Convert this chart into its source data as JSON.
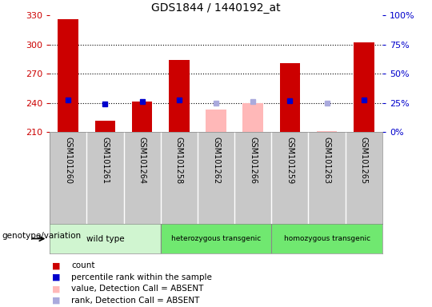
{
  "title": "GDS1844 / 1440192_at",
  "samples": [
    "GSM101260",
    "GSM101261",
    "GSM101264",
    "GSM101258",
    "GSM101262",
    "GSM101266",
    "GSM101259",
    "GSM101263",
    "GSM101265"
  ],
  "count_values": [
    326,
    222,
    241,
    284,
    null,
    null,
    281,
    null,
    302
  ],
  "count_absent_values": [
    null,
    null,
    null,
    null,
    233,
    240,
    null,
    211,
    null
  ],
  "percentile_values": [
    243,
    239,
    241,
    243,
    null,
    null,
    242,
    null,
    243
  ],
  "percentile_absent_values": [
    null,
    null,
    null,
    null,
    240,
    241,
    null,
    240,
    null
  ],
  "ylim_left": [
    210,
    330
  ],
  "ylim_right": [
    0,
    100
  ],
  "yticks_left": [
    210,
    240,
    270,
    300,
    330
  ],
  "yticks_right": [
    0,
    25,
    50,
    75,
    100
  ],
  "groups": [
    {
      "label": "wild type",
      "start": 0,
      "end": 3,
      "color": "#d0f5d0"
    },
    {
      "label": "heterozygous transgenic",
      "start": 3,
      "end": 6,
      "color": "#70e870"
    },
    {
      "label": "homozygous transgenic",
      "start": 6,
      "end": 9,
      "color": "#70e870"
    }
  ],
  "group_label": "genotype/variation",
  "bar_width": 0.55,
  "count_color": "#cc0000",
  "count_absent_color": "#ffb8b8",
  "percentile_color": "#0000cc",
  "percentile_absent_color": "#aaaadd",
  "tick_bg_color": "#c8c8c8",
  "grid_color": "#000000",
  "axis_left_color": "#cc0000",
  "axis_right_color": "#0000cc",
  "legend_items": [
    {
      "color": "#cc0000",
      "label": "count"
    },
    {
      "color": "#0000cc",
      "label": "percentile rank within the sample"
    },
    {
      "color": "#ffb8b8",
      "label": "value, Detection Call = ABSENT"
    },
    {
      "color": "#aaaadd",
      "label": "rank, Detection Call = ABSENT"
    }
  ]
}
